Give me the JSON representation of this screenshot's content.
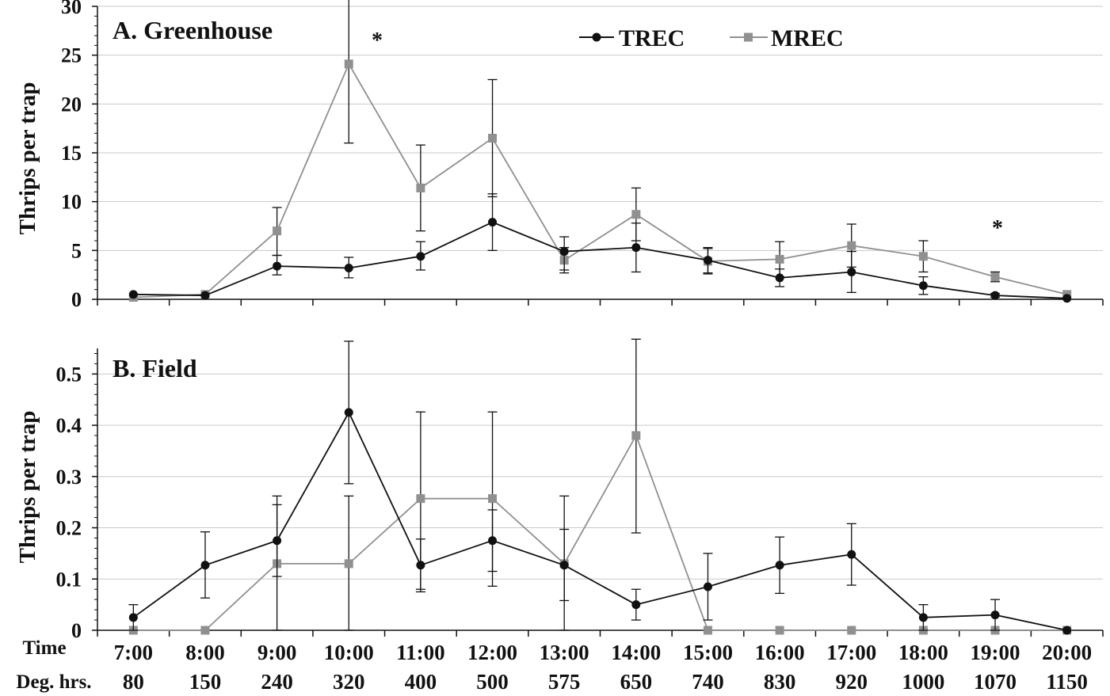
{
  "chart_data": [
    {
      "type": "line",
      "title": "A.  Greenhouse",
      "ylabel": "Thrips per trap",
      "ylim": [
        0,
        30
      ],
      "yticks": [
        "0",
        "5",
        "10",
        "15",
        "20",
        "25",
        "30"
      ],
      "grid": true,
      "legend_position": "top-center",
      "categories": [
        "7:00",
        "8:00",
        "9:00",
        "10:00",
        "11:00",
        "12:00",
        "13:00",
        "14:00",
        "15:00",
        "16:00",
        "17:00",
        "18:00",
        "19:00",
        "20:00"
      ],
      "series": [
        {
          "name": "TREC",
          "color": "#111111",
          "marker": "circle",
          "values": [
            0.5,
            0.4,
            3.4,
            3.2,
            4.4,
            7.9,
            4.9,
            5.3,
            4.0,
            2.2,
            2.8,
            1.4,
            0.4,
            0.1
          ],
          "error_low": [
            0.5,
            0.4,
            2.5,
            2.2,
            3.0,
            5.0,
            3.0,
            2.8,
            2.7,
            1.3,
            0.7,
            0.5,
            0.2,
            0.1
          ],
          "error_high": [
            0.5,
            0.4,
            4.5,
            4.3,
            5.9,
            10.8,
            6.4,
            7.8,
            5.3,
            3.1,
            4.9,
            2.3,
            0.6,
            0.1
          ]
        },
        {
          "name": "MREC",
          "color": "#909090",
          "marker": "square",
          "values": [
            0.2,
            0.5,
            7.0,
            24.1,
            11.4,
            16.5,
            4.0,
            8.7,
            3.9,
            4.1,
            5.5,
            4.4,
            2.3,
            0.5
          ],
          "error_low": [
            0.2,
            0.5,
            4.5,
            16.0,
            7.0,
            10.5,
            2.7,
            6.0,
            2.6,
            2.3,
            3.3,
            2.8,
            1.8,
            0.5
          ],
          "error_high": [
            0.2,
            0.5,
            9.4,
            32.2,
            15.8,
            22.5,
            5.3,
            11.4,
            5.2,
            5.9,
            7.7,
            6.0,
            2.8,
            0.5
          ]
        }
      ],
      "annotations": [
        {
          "text": "*",
          "category": "10:00"
        },
        {
          "text": "*",
          "category": "19:00"
        }
      ]
    },
    {
      "type": "line",
      "title": "B.  Field",
      "ylabel": "Thrips per trap",
      "ylim": [
        0,
        0.55
      ],
      "yticks": [
        "0",
        "0.1",
        "0.2",
        "0.3",
        "0.4",
        "0.5"
      ],
      "grid": true,
      "categories": [
        "7:00",
        "8:00",
        "9:00",
        "10:00",
        "11:00",
        "12:00",
        "13:00",
        "14:00",
        "15:00",
        "16:00",
        "17:00",
        "18:00",
        "19:00",
        "20:00"
      ],
      "category_label": "Time",
      "secondary_categories": [
        "80",
        "150",
        "240",
        "320",
        "400",
        "500",
        "575",
        "650",
        "740",
        "830",
        "920",
        "1000",
        "1070",
        "1150"
      ],
      "secondary_category_label": "Deg. hrs.",
      "series": [
        {
          "name": "TREC",
          "color": "#111111",
          "marker": "circle",
          "values": [
            0.025,
            0.127,
            0.175,
            0.425,
            0.127,
            0.175,
            0.127,
            0.05,
            0.085,
            0.127,
            0.148,
            0.025,
            0.03,
            0.0
          ],
          "error_low": [
            0.0,
            0.063,
            0.105,
            0.286,
            0.08,
            0.115,
            0.058,
            0.02,
            0.02,
            0.072,
            0.088,
            0.0,
            0.0,
            0.0
          ],
          "error_high": [
            0.05,
            0.192,
            0.245,
            0.564,
            0.178,
            0.235,
            0.197,
            0.08,
            0.15,
            0.182,
            0.208,
            0.05,
            0.06,
            0.0
          ]
        },
        {
          "name": "MREC",
          "color": "#909090",
          "marker": "square",
          "values": [
            0.0,
            0.0,
            0.13,
            0.13,
            0.257,
            0.257,
            0.13,
            0.38,
            0.0,
            0.0,
            0.0,
            0.0,
            0.0,
            0.0
          ],
          "error_low": [
            0.0,
            0.0,
            0.0,
            0.0,
            0.075,
            0.086,
            0.0,
            0.19,
            0.0,
            0.0,
            0.0,
            0.0,
            0.0,
            0.0
          ],
          "error_high": [
            0.0,
            0.0,
            0.262,
            0.262,
            0.426,
            0.426,
            0.262,
            0.568,
            0.0,
            0.0,
            0.0,
            0.0,
            0.0,
            0.0
          ]
        }
      ]
    }
  ]
}
